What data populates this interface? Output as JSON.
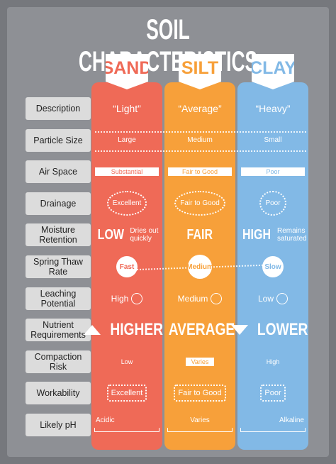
{
  "title": "SOIL CHARACTERISTICS",
  "soils": [
    "SAND",
    "SILT",
    "CLAY"
  ],
  "rows": [
    {
      "label": "Description",
      "cells": [
        [
          "“Light”"
        ],
        [
          "“Average”"
        ],
        [
          "“Heavy”"
        ]
      ]
    },
    {
      "label": "Particle Size",
      "cells": [
        [
          "Large"
        ],
        [
          "Medium"
        ],
        [
          "Small"
        ]
      ]
    },
    {
      "label": "Air Space",
      "cells": [
        [
          "Substantial"
        ],
        [
          "Fair to Good"
        ],
        [
          "Poor"
        ]
      ]
    },
    {
      "label": "Drainage",
      "cells": [
        [
          "Excellent"
        ],
        [
          "Fair to Good"
        ],
        [
          "Poor"
        ]
      ]
    },
    {
      "label": "Moisture Retention",
      "cells": [
        [
          "LOW",
          "Dries out quickly"
        ],
        [
          "FAIR"
        ],
        [
          "HIGH",
          "Remains saturated"
        ]
      ]
    },
    {
      "label": "Spring Thaw Rate",
      "cells": [
        [
          "Fast"
        ],
        [
          "Medium"
        ],
        [
          "Slow"
        ]
      ]
    },
    {
      "label": "Leaching Potential",
      "cells": [
        [
          "High"
        ],
        [
          "Medium"
        ],
        [
          "Low"
        ]
      ]
    },
    {
      "label": "Nutrient Requirements",
      "cells": [
        [
          "HIGHER"
        ],
        [
          "AVERAGE"
        ],
        [
          "LOWER"
        ]
      ]
    },
    {
      "label": "Compaction Risk",
      "cells": [
        [
          "Low"
        ],
        [
          "Varies"
        ],
        [
          "High"
        ]
      ]
    },
    {
      "label": "Workability",
      "cells": [
        [
          "Excellent"
        ],
        [
          "Fair to Good"
        ],
        [
          "Poor"
        ]
      ]
    },
    {
      "label": "Likely pH",
      "cells": [
        [
          "Acidic"
        ],
        [
          "Varies"
        ],
        [
          "Alkaline"
        ]
      ]
    }
  ]
}
